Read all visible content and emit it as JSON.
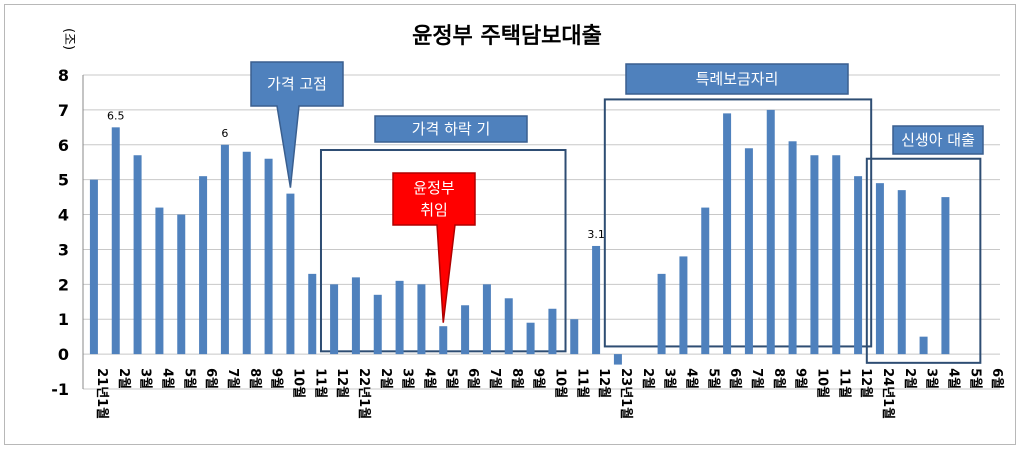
{
  "chart_data": {
    "type": "bar",
    "title": "윤정부 주택담보대출",
    "ylabel": "(조)",
    "ylim": [
      -1,
      8
    ],
    "yticks": [
      -1,
      0,
      1,
      2,
      3,
      4,
      5,
      6,
      7,
      8
    ],
    "grid": true,
    "bar_color": "#4f81bd",
    "categories": [
      "21년1월",
      "2월",
      "3월",
      "4월",
      "5월",
      "6월",
      "7월",
      "8월",
      "9월",
      "10월",
      "11월",
      "12월",
      "22년1월",
      "2월",
      "3월",
      "4월",
      "5월",
      "6월",
      "7월",
      "8월",
      "9월",
      "10월",
      "11월",
      "12월",
      "23년1월",
      "2월",
      "3월",
      "4월",
      "5월",
      "6월",
      "7월",
      "8월",
      "9월",
      "10월",
      "11월",
      "12월",
      "24년1월",
      "2월",
      "3월",
      "4월",
      "5월",
      "6월"
    ],
    "values": [
      5.0,
      6.5,
      5.7,
      4.2,
      4.0,
      5.1,
      6.0,
      5.8,
      5.6,
      4.6,
      2.3,
      2.0,
      2.2,
      1.7,
      2.1,
      2.0,
      0.8,
      1.4,
      2.0,
      1.6,
      0.9,
      1.3,
      1.0,
      3.1,
      -0.3,
      0.0,
      2.3,
      2.8,
      4.2,
      6.9,
      5.9,
      7.0,
      6.1,
      5.7,
      5.7,
      5.1,
      4.9,
      4.7,
      0.5,
      4.5,
      0.0,
      0.0
    ],
    "data_labels": [
      {
        "index": 1,
        "text": "6.5"
      },
      {
        "index": 6,
        "text": "6"
      },
      {
        "index": 23,
        "text": "3.1"
      }
    ],
    "annotations": {
      "price_fixed": "가격 고점",
      "price_drop": "가격 하락 기",
      "inauguration_line1": "윤정부",
      "inauguration_line2": "취임",
      "special_loan": "특례보금자리",
      "newborn_loan": "신생아 대출"
    },
    "colors": {
      "box_fill": "#4f81bd",
      "box_outline": "#3a5f8f",
      "region_outline": "#2e4d73",
      "inauguration_fill": "#ff0000",
      "grid": "#c8c8c8"
    }
  }
}
